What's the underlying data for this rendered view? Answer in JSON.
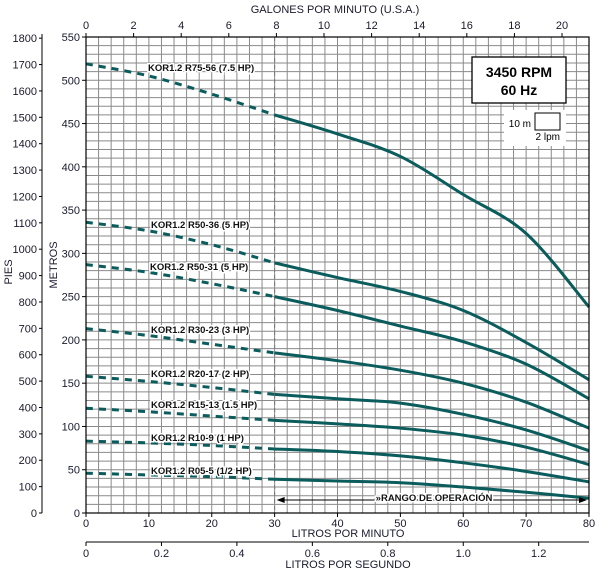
{
  "chart_data": {
    "type": "line",
    "title_top_axis": "GALONES POR MINUTO (U.S.A.)",
    "xlabel": "LITROS POR MINUTO",
    "xlabel_secondary": "LITROS POR SEGUNDO",
    "ylabel": "METROS",
    "ylabel_secondary": "PIES",
    "xlim": [
      0,
      80
    ],
    "ylim": [
      0,
      550
    ],
    "grid": true,
    "grid_step": {
      "x_lpm": 2,
      "y_m": 10
    },
    "x_ticks": [
      0,
      10,
      20,
      30,
      40,
      50,
      60,
      70,
      80
    ],
    "y_ticks": [
      0,
      50,
      100,
      150,
      200,
      250,
      300,
      350,
      400,
      450,
      500,
      550
    ],
    "gpm_ticks": [
      0,
      2,
      4,
      6,
      8,
      10,
      12,
      14,
      16,
      18,
      20
    ],
    "feet_ticks": [
      0,
      100,
      200,
      300,
      400,
      500,
      600,
      700,
      800,
      900,
      1000,
      1100,
      1200,
      1300,
      1400,
      1500,
      1600,
      1700,
      1800
    ],
    "lps_ticks": [
      "0",
      "0.2",
      "0.4",
      "0.6",
      "0.8",
      "1.0",
      "1.2"
    ],
    "operating_range_lpm": [
      30,
      80
    ],
    "operating_range_label": "»RANGO DE OPERACIÓN",
    "info_box": {
      "line1": "3450 RPM",
      "line2": "60 Hz"
    },
    "scale_legend": {
      "height": "10 m",
      "width": "2 lpm"
    },
    "x": [
      0,
      10,
      20,
      30,
      40,
      50,
      60,
      70,
      80
    ],
    "series": [
      {
        "name": "KOR1.2 R75-56 (7.5 HP)",
        "values": [
          519,
          505,
          484,
          460,
          438,
          412,
          368,
          323,
          238
        ]
      },
      {
        "name": "KOR1.2 R50-36 (5 HP)",
        "values": [
          336,
          326,
          310,
          289,
          272,
          256,
          234,
          197,
          154
        ]
      },
      {
        "name": "KOR1.2 R50-31 (5 HP)",
        "values": [
          287,
          278,
          265,
          250,
          234,
          216,
          198,
          172,
          132
        ]
      },
      {
        "name": "KOR1.2 R30-23 (3 HP)",
        "values": [
          213,
          205,
          195,
          185,
          176,
          165,
          150,
          128,
          98
        ]
      },
      {
        "name": "KOR1.2 R20-17 (2 HP)",
        "values": [
          158,
          152,
          145,
          137,
          132,
          127,
          114,
          96,
          72
        ]
      },
      {
        "name": "KOR1.2 R15-13 (1.5 HP)",
        "values": [
          121,
          117,
          112,
          107,
          103,
          98,
          90,
          76,
          56
        ]
      },
      {
        "name": "KOR1.2 R10-9 (1 HP)",
        "values": [
          83,
          81,
          78,
          74,
          71,
          66,
          58,
          48,
          36
        ]
      },
      {
        "name": "KOR1.2 R05-5 (1/2 HP)",
        "values": [
          46,
          44,
          42,
          39,
          37,
          35,
          30,
          24,
          17
        ]
      }
    ],
    "colors": {
      "curve": "#0b5c5c",
      "grid": "#8a8a8a",
      "axis": "#000000"
    }
  }
}
